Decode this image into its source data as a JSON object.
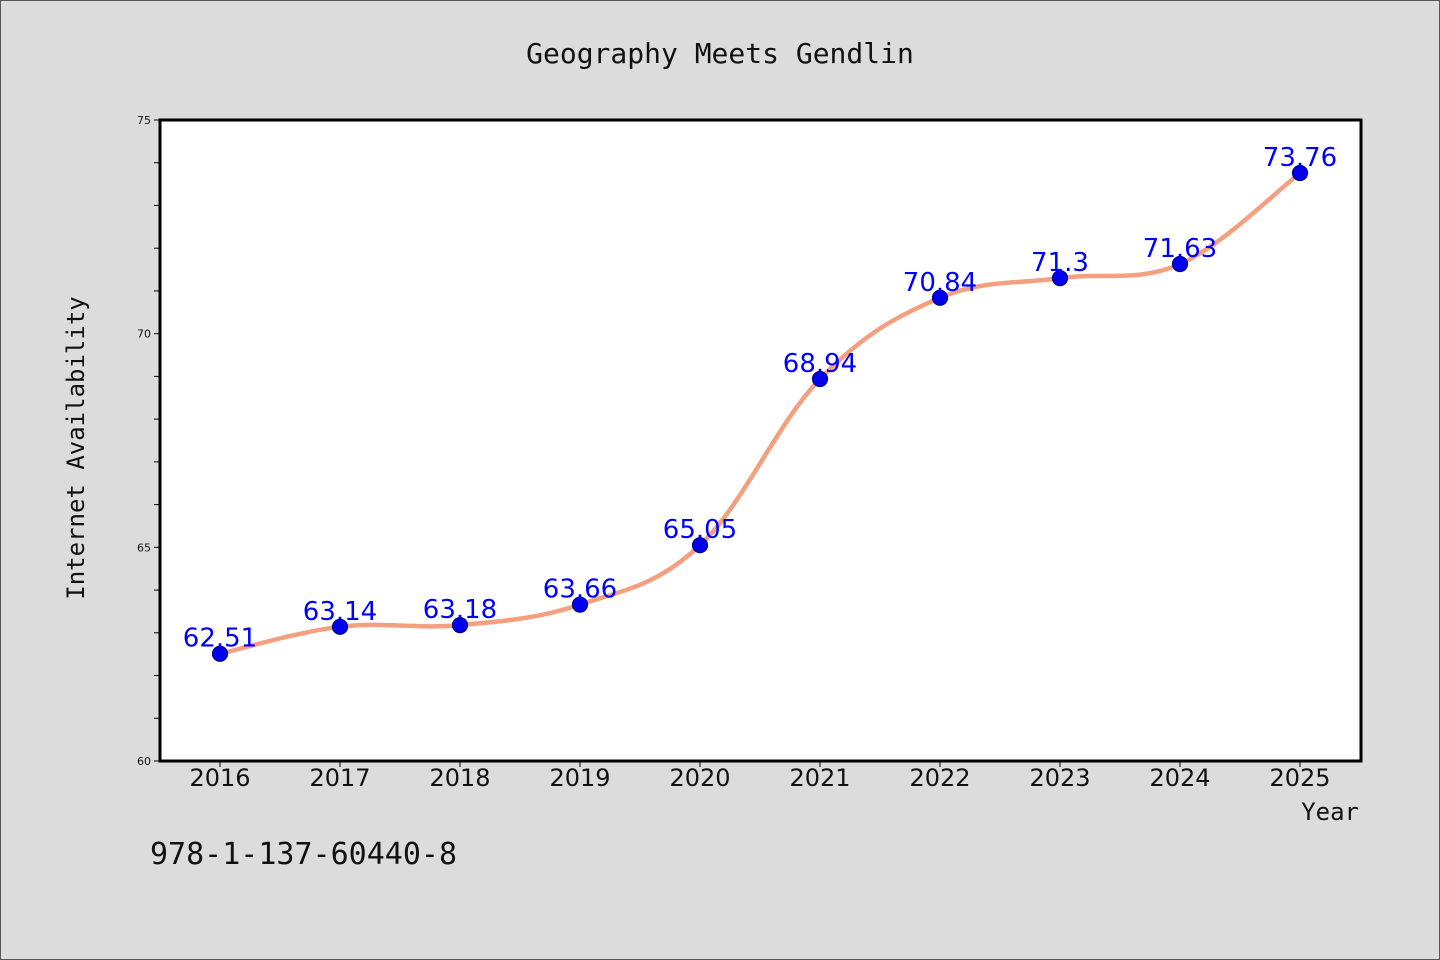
{
  "chart_data": {
    "type": "line",
    "title": "Geography Meets Gendlin",
    "xlabel": "Year",
    "ylabel": "Internet Availability",
    "x": [
      "2016",
      "2017",
      "2018",
      "2019",
      "2020",
      "2021",
      "2022",
      "2023",
      "2024",
      "2025"
    ],
    "values": [
      62.51,
      63.14,
      63.18,
      63.66,
      65.05,
      68.94,
      70.84,
      71.3,
      71.63,
      73.76
    ],
    "data_labels": [
      "62.51",
      "63.14",
      "63.18",
      "63.66",
      "65.05",
      "68.94",
      "70.84",
      "71.3",
      "71.63",
      "73.76"
    ],
    "ylim": [
      60,
      75
    ],
    "yticks": [
      "60",
      "65",
      "70",
      "75"
    ],
    "grid": false,
    "legend": "none",
    "colors": {
      "line": "#f4a07e",
      "marker": "#0000ee",
      "marker_edge": "#00008b",
      "data_label": "#0000ff",
      "background": "#dcdcdc",
      "plot_background": "#ffffff"
    }
  },
  "footer": {
    "isbn": "978-1-137-60440-8"
  }
}
